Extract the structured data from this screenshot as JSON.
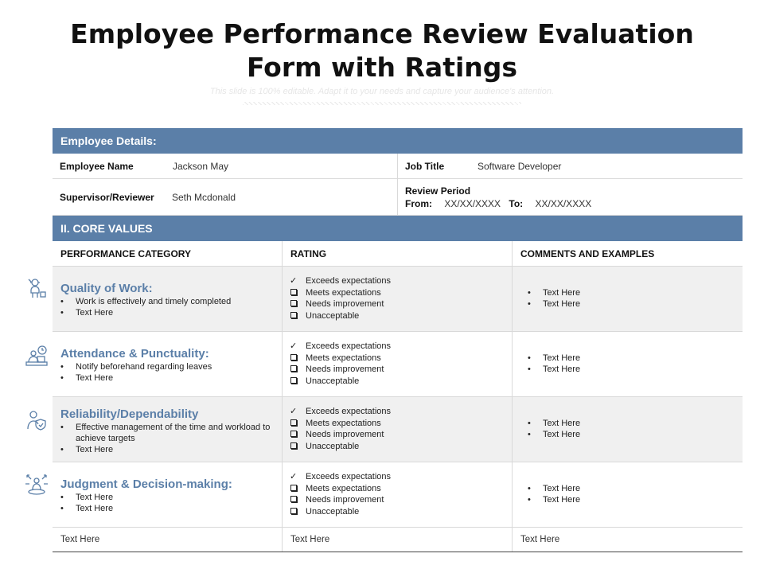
{
  "title_line1": "Employee Performance Review Evaluation",
  "title_line2": "Form with Ratings",
  "subtitle": "This slide is 100% editable. Adapt it to your needs and capture your audience's attention.",
  "employee": {
    "section_title": "Employee Details:",
    "name_label": "Employee Name",
    "name_value": "Jackson May",
    "job_label": "Job Title",
    "job_value": "Software Developer",
    "supervisor_label": "Supervisor/Reviewer",
    "supervisor_value": "Seth Mcdonald",
    "period_label": "Review Period",
    "from_label": "From:",
    "from_value": "XX/XX/XXXX",
    "to_label": "To:",
    "to_value": "XX/XX/XXXX"
  },
  "core": {
    "section_title": "II. CORE VALUES",
    "headers": [
      "PERFORMANCE  CATEGORY",
      "RATING",
      "COMMENTS  AND EXAMPLES"
    ]
  },
  "rating_options": [
    "Exceeds expectations",
    "Meets expectations",
    "Needs improvement",
    "Unacceptable"
  ],
  "categories": [
    {
      "icon": "worker-icon",
      "title": "Quality of Work:",
      "bullets": [
        "Work is effectively and timely completed",
        "Text Here"
      ],
      "selected": 0,
      "comments": [
        "Text Here",
        "Text Here"
      ]
    },
    {
      "icon": "person-at-desk-clock-icon",
      "title": "Attendance & Punctuality:",
      "bullets": [
        "Notify beforehand regarding leaves",
        "Text Here"
      ],
      "selected": 0,
      "comments": [
        "Text Here",
        "Text Here"
      ]
    },
    {
      "icon": "person-with-shield-icon",
      "title": "Reliability/Dependability",
      "bullets": [
        "Effective management of the time and workload to achieve targets",
        "Text Here"
      ],
      "selected": 0,
      "comments": [
        "Text Here",
        "Text Here"
      ]
    },
    {
      "icon": "decision-person-arrows-icon",
      "title": "Judgment & Decision-making:",
      "bullets": [
        "Text Here",
        "Text Here"
      ],
      "selected": 0,
      "comments": [
        "Text Here",
        "Text Here"
      ]
    }
  ],
  "footer": [
    "Text Here",
    "Text Here",
    "Text Here"
  ],
  "colors": {
    "accent": "#5b7fa8",
    "row_shade": "#f0f0f0",
    "border": "#d9d9d9"
  }
}
